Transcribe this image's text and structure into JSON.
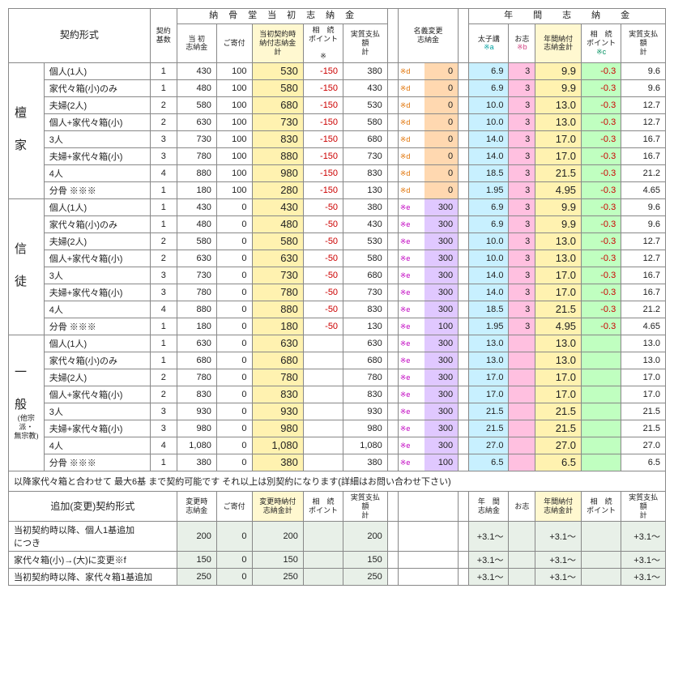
{
  "headers": {
    "contract_form": "契約形式",
    "count": "契約\n基数",
    "group_initial": "納　骨　堂　当　初　志　納　金",
    "group_annual": "年　　間　　志　　納　　金",
    "a": "当 初\n志納金",
    "b": "ご寄付",
    "c": "当初契約時\n納付志納金\n計",
    "d": "相　続\nポイント\n\n※",
    "e": "実質支払\n額\n計",
    "f": "名義変更\n志納金",
    "g": "太子講",
    "h": "お志",
    "i": "年間納付\n志納金計",
    "j": "相　続\nポイント",
    "k": "実質支払\n額\n計",
    "star_a": "※a",
    "star_b": "※b",
    "star_c": "※c"
  },
  "cats": [
    {
      "name": "檀　家",
      "sub": "",
      "rows": [
        {
          "n": "個人(1人)",
          "ct": "1",
          "a": "430",
          "b": "100",
          "c": "530",
          "d": "-150",
          "e": "380",
          "fm": "※d",
          "fv": "0",
          "g": "6.9",
          "h": "3",
          "i": "9.9",
          "j": "-0.3",
          "k": "9.6"
        },
        {
          "n": "家代々箱(小)のみ",
          "ct": "1",
          "a": "480",
          "b": "100",
          "c": "580",
          "d": "-150",
          "e": "430",
          "fm": "※d",
          "fv": "0",
          "g": "6.9",
          "h": "3",
          "i": "9.9",
          "j": "-0.3",
          "k": "9.6"
        },
        {
          "n": "夫婦(2人)",
          "ct": "2",
          "a": "580",
          "b": "100",
          "c": "680",
          "d": "-150",
          "e": "530",
          "fm": "※d",
          "fv": "0",
          "g": "10.0",
          "h": "3",
          "i": "13.0",
          "j": "-0.3",
          "k": "12.7"
        },
        {
          "n": "個人+家代々箱(小)",
          "ct": "2",
          "a": "630",
          "b": "100",
          "c": "730",
          "d": "-150",
          "e": "580",
          "fm": "※d",
          "fv": "0",
          "g": "10.0",
          "h": "3",
          "i": "13.0",
          "j": "-0.3",
          "k": "12.7"
        },
        {
          "n": "3人",
          "ct": "3",
          "a": "730",
          "b": "100",
          "c": "830",
          "d": "-150",
          "e": "680",
          "fm": "※d",
          "fv": "0",
          "g": "14.0",
          "h": "3",
          "i": "17.0",
          "j": "-0.3",
          "k": "16.7"
        },
        {
          "n": "夫婦+家代々箱(小)",
          "ct": "3",
          "a": "780",
          "b": "100",
          "c": "880",
          "d": "-150",
          "e": "730",
          "fm": "※d",
          "fv": "0",
          "g": "14.0",
          "h": "3",
          "i": "17.0",
          "j": "-0.3",
          "k": "16.7"
        },
        {
          "n": "4人",
          "ct": "4",
          "a": "880",
          "b": "100",
          "c": "980",
          "d": "-150",
          "e": "830",
          "fm": "※d",
          "fv": "0",
          "g": "18.5",
          "h": "3",
          "i": "21.5",
          "j": "-0.3",
          "k": "21.2"
        },
        {
          "n": "分骨 ※※※",
          "ct": "1",
          "a": "180",
          "b": "100",
          "c": "280",
          "d": "-150",
          "e": "130",
          "fm": "※d",
          "fv": "0",
          "g": "1.95",
          "h": "3",
          "i": "4.95",
          "j": "-0.3",
          "k": "4.65"
        }
      ],
      "fcol": "org",
      "fbg": "bc-org"
    },
    {
      "name": "信　徒",
      "sub": "",
      "rows": [
        {
          "n": "個人(1人)",
          "ct": "1",
          "a": "430",
          "b": "0",
          "c": "430",
          "d": "-50",
          "e": "380",
          "fm": "※e",
          "fv": "300",
          "g": "6.9",
          "h": "3",
          "i": "9.9",
          "j": "-0.3",
          "k": "9.6"
        },
        {
          "n": "家代々箱(小)のみ",
          "ct": "1",
          "a": "480",
          "b": "0",
          "c": "480",
          "d": "-50",
          "e": "430",
          "fm": "※e",
          "fv": "300",
          "g": "6.9",
          "h": "3",
          "i": "9.9",
          "j": "-0.3",
          "k": "9.6"
        },
        {
          "n": "夫婦(2人)",
          "ct": "2",
          "a": "580",
          "b": "0",
          "c": "580",
          "d": "-50",
          "e": "530",
          "fm": "※e",
          "fv": "300",
          "g": "10.0",
          "h": "3",
          "i": "13.0",
          "j": "-0.3",
          "k": "12.7"
        },
        {
          "n": "個人+家代々箱(小)",
          "ct": "2",
          "a": "630",
          "b": "0",
          "c": "630",
          "d": "-50",
          "e": "580",
          "fm": "※e",
          "fv": "300",
          "g": "10.0",
          "h": "3",
          "i": "13.0",
          "j": "-0.3",
          "k": "12.7"
        },
        {
          "n": "3人",
          "ct": "3",
          "a": "730",
          "b": "0",
          "c": "730",
          "d": "-50",
          "e": "680",
          "fm": "※e",
          "fv": "300",
          "g": "14.0",
          "h": "3",
          "i": "17.0",
          "j": "-0.3",
          "k": "16.7"
        },
        {
          "n": "夫婦+家代々箱(小)",
          "ct": "3",
          "a": "780",
          "b": "0",
          "c": "780",
          "d": "-50",
          "e": "730",
          "fm": "※e",
          "fv": "300",
          "g": "14.0",
          "h": "3",
          "i": "17.0",
          "j": "-0.3",
          "k": "16.7"
        },
        {
          "n": "4人",
          "ct": "4",
          "a": "880",
          "b": "0",
          "c": "880",
          "d": "-50",
          "e": "830",
          "fm": "※e",
          "fv": "300",
          "g": "18.5",
          "h": "3",
          "i": "21.5",
          "j": "-0.3",
          "k": "21.2"
        },
        {
          "n": "分骨 ※※※",
          "ct": "1",
          "a": "180",
          "b": "0",
          "c": "180",
          "d": "-50",
          "e": "130",
          "fm": "※e",
          "fv": "100",
          "g": "1.95",
          "h": "3",
          "i": "4.95",
          "j": "-0.3",
          "k": "4.65"
        }
      ],
      "fcol": "mag",
      "fbg": "bc-pur"
    },
    {
      "name": "一　般",
      "sub": "(他宗派・\n無宗教)",
      "rows": [
        {
          "n": "個人(1人)",
          "ct": "1",
          "a": "630",
          "b": "0",
          "c": "630",
          "d": "",
          "e": "630",
          "fm": "※e",
          "fv": "300",
          "g": "13.0",
          "h": "",
          "i": "13.0",
          "j": "",
          "k": "13.0"
        },
        {
          "n": "家代々箱(小)のみ",
          "ct": "1",
          "a": "680",
          "b": "0",
          "c": "680",
          "d": "",
          "e": "680",
          "fm": "※e",
          "fv": "300",
          "g": "13.0",
          "h": "",
          "i": "13.0",
          "j": "",
          "k": "13.0"
        },
        {
          "n": "夫婦(2人)",
          "ct": "2",
          "a": "780",
          "b": "0",
          "c": "780",
          "d": "",
          "e": "780",
          "fm": "※e",
          "fv": "300",
          "g": "17.0",
          "h": "",
          "i": "17.0",
          "j": "",
          "k": "17.0"
        },
        {
          "n": "個人+家代々箱(小)",
          "ct": "2",
          "a": "830",
          "b": "0",
          "c": "830",
          "d": "",
          "e": "830",
          "fm": "※e",
          "fv": "300",
          "g": "17.0",
          "h": "",
          "i": "17.0",
          "j": "",
          "k": "17.0"
        },
        {
          "n": "3人",
          "ct": "3",
          "a": "930",
          "b": "0",
          "c": "930",
          "d": "",
          "e": "930",
          "fm": "※e",
          "fv": "300",
          "g": "21.5",
          "h": "",
          "i": "21.5",
          "j": "",
          "k": "21.5"
        },
        {
          "n": "夫婦+家代々箱(小)",
          "ct": "3",
          "a": "980",
          "b": "0",
          "c": "980",
          "d": "",
          "e": "980",
          "fm": "※e",
          "fv": "300",
          "g": "21.5",
          "h": "",
          "i": "21.5",
          "j": "",
          "k": "21.5"
        },
        {
          "n": "4人",
          "ct": "4",
          "a": "1,080",
          "b": "0",
          "c": "1,080",
          "d": "",
          "e": "1,080",
          "fm": "※e",
          "fv": "300",
          "g": "27.0",
          "h": "",
          "i": "27.0",
          "j": "",
          "k": "27.0"
        },
        {
          "n": "分骨 ※※※",
          "ct": "1",
          "a": "380",
          "b": "0",
          "c": "380",
          "d": "",
          "e": "380",
          "fm": "※e",
          "fv": "100",
          "g": "6.5",
          "h": "",
          "i": "6.5",
          "j": "",
          "k": "6.5"
        }
      ],
      "fcol": "mag",
      "fbg": "bc-pur"
    }
  ],
  "note": "以降家代々箱と合わせて 最大6基 まで契約可能です  それ以上は別契約になります(詳細はお問い合わせ下さい)",
  "lower": {
    "title": "追加(変更)契約形式",
    "ha": "変更時\n志納金",
    "hb": "ご寄付",
    "hc": "変更時納付\n志納金計",
    "hd": "相　続\nポイント",
    "he": "実質支払\n額\n計",
    "hg": "年　間\n志納金",
    "hh": "お志",
    "hi": "年間納付\n志納金計",
    "hj": "相　続\nポイント",
    "hk": "実質支払\n額\n計",
    "rows": [
      {
        "n": "当初契約時以降、個人1基追加\nにつき",
        "a": "200",
        "b": "0",
        "c": "200",
        "e": "200",
        "g": "+3.1〜",
        "i": "+3.1〜",
        "k": "+3.1〜"
      },
      {
        "n": "家代々箱(小)→(大)に変更※f",
        "a": "150",
        "b": "0",
        "c": "150",
        "e": "150",
        "g": "+3.1〜",
        "i": "+3.1〜",
        "k": "+3.1〜"
      },
      {
        "n": "当初契約時以降、家代々箱1基追加",
        "a": "250",
        "b": "0",
        "c": "250",
        "e": "250",
        "g": "+3.1〜",
        "i": "+3.1〜",
        "k": "+3.1〜"
      }
    ]
  }
}
